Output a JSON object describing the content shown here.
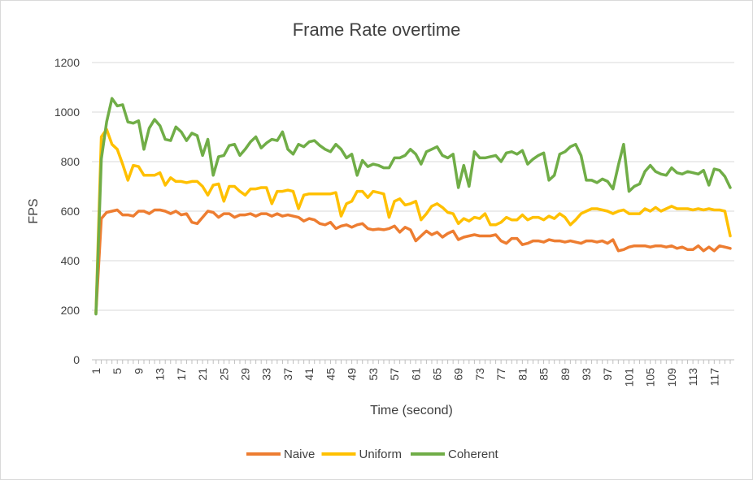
{
  "chart_data": {
    "type": "line",
    "title": "Frame Rate overtime",
    "xlabel": "Time (second)",
    "ylabel": "FPS",
    "ylim": [
      0,
      1200
    ],
    "yticks": [
      0,
      200,
      400,
      600,
      800,
      1000,
      1200
    ],
    "xlim": [
      1,
      120
    ],
    "xticks": [
      1,
      5,
      9,
      13,
      17,
      21,
      25,
      29,
      33,
      37,
      41,
      45,
      49,
      53,
      57,
      61,
      65,
      69,
      73,
      77,
      81,
      85,
      89,
      93,
      97,
      101,
      105,
      109,
      113,
      117
    ],
    "grid": "horizontal",
    "legend": "bottom",
    "series": [
      {
        "name": "Naive",
        "color": "#ED7D31",
        "x": [
          1,
          2,
          3,
          4,
          5,
          6,
          7,
          8,
          9,
          10,
          11,
          12,
          13,
          14,
          15,
          16,
          17,
          18,
          19,
          20,
          21,
          22,
          23,
          24,
          25,
          26,
          27,
          28,
          29,
          30,
          31,
          32,
          33,
          34,
          35,
          36,
          37,
          38,
          39,
          40,
          41,
          42,
          43,
          44,
          45,
          46,
          47,
          48,
          49,
          50,
          51,
          52,
          53,
          54,
          55,
          56,
          57,
          58,
          59,
          60,
          61,
          62,
          63,
          64,
          65,
          66,
          67,
          68,
          69,
          70,
          71,
          72,
          73,
          74,
          75,
          76,
          77,
          78,
          79,
          80,
          81,
          82,
          83,
          84,
          85,
          86,
          87,
          88,
          89,
          90,
          91,
          92,
          93,
          94,
          95,
          96,
          97,
          98,
          99,
          100,
          101,
          102,
          103,
          104,
          105,
          106,
          107,
          108,
          109,
          110,
          111,
          112,
          113,
          114,
          115,
          116,
          117,
          118,
          119,
          120
        ],
        "values": [
          190,
          570,
          595,
          600,
          605,
          585,
          585,
          580,
          600,
          600,
          590,
          605,
          605,
          600,
          590,
          600,
          585,
          590,
          555,
          550,
          575,
          600,
          595,
          575,
          590,
          590,
          575,
          585,
          585,
          590,
          580,
          590,
          590,
          580,
          590,
          580,
          585,
          580,
          575,
          560,
          570,
          565,
          550,
          545,
          555,
          530,
          540,
          545,
          535,
          545,
          550,
          530,
          525,
          528,
          525,
          530,
          540,
          515,
          535,
          525,
          480,
          500,
          520,
          505,
          515,
          495,
          510,
          520,
          485,
          495,
          500,
          505,
          500,
          500,
          500,
          505,
          480,
          470,
          490,
          490,
          465,
          470,
          480,
          480,
          475,
          485,
          480,
          480,
          475,
          480,
          475,
          470,
          480,
          480,
          475,
          480,
          470,
          485,
          440,
          445,
          455,
          460,
          460,
          460,
          455,
          460,
          460,
          455,
          460,
          450,
          455,
          445,
          445,
          460,
          440,
          455,
          440,
          460,
          455,
          450
        ]
      },
      {
        "name": "Uniform",
        "color": "#FFC000",
        "x": [
          1,
          2,
          3,
          4,
          5,
          6,
          7,
          8,
          9,
          10,
          11,
          12,
          13,
          14,
          15,
          16,
          17,
          18,
          19,
          20,
          21,
          22,
          23,
          24,
          25,
          26,
          27,
          28,
          29,
          30,
          31,
          32,
          33,
          34,
          35,
          36,
          37,
          38,
          39,
          40,
          41,
          42,
          43,
          44,
          45,
          46,
          47,
          48,
          49,
          50,
          51,
          52,
          53,
          54,
          55,
          56,
          57,
          58,
          59,
          60,
          61,
          62,
          63,
          64,
          65,
          66,
          67,
          68,
          69,
          70,
          71,
          72,
          73,
          74,
          75,
          76,
          77,
          78,
          79,
          80,
          81,
          82,
          83,
          84,
          85,
          86,
          87,
          88,
          89,
          90,
          91,
          92,
          93,
          94,
          95,
          96,
          97,
          98,
          99,
          100,
          101,
          102,
          103,
          104,
          105,
          106,
          107,
          108,
          109,
          110,
          111,
          112,
          113,
          114,
          115,
          116,
          117,
          118,
          119,
          120
        ],
        "values": [
          190,
          900,
          930,
          870,
          850,
          790,
          725,
          785,
          780,
          745,
          745,
          745,
          755,
          705,
          735,
          720,
          720,
          715,
          720,
          720,
          700,
          665,
          705,
          710,
          640,
          700,
          700,
          680,
          665,
          690,
          690,
          695,
          695,
          630,
          680,
          680,
          685,
          680,
          610,
          665,
          670,
          670,
          670,
          670,
          670,
          675,
          580,
          630,
          640,
          680,
          680,
          655,
          680,
          675,
          670,
          575,
          640,
          650,
          625,
          630,
          640,
          565,
          590,
          620,
          630,
          615,
          595,
          590,
          550,
          570,
          560,
          575,
          570,
          590,
          545,
          545,
          555,
          575,
          565,
          565,
          585,
          565,
          575,
          575,
          565,
          580,
          570,
          590,
          575,
          545,
          565,
          590,
          600,
          610,
          610,
          605,
          600,
          590,
          600,
          605,
          590,
          590,
          590,
          610,
          600,
          615,
          600,
          610,
          620,
          610,
          610,
          610,
          605,
          610,
          605,
          610,
          605,
          605,
          600,
          500
        ]
      },
      {
        "name": "Coherent",
        "color": "#70AD47",
        "x": [
          1,
          2,
          3,
          4,
          5,
          6,
          7,
          8,
          9,
          10,
          11,
          12,
          13,
          14,
          15,
          16,
          17,
          18,
          19,
          20,
          21,
          22,
          23,
          24,
          25,
          26,
          27,
          28,
          29,
          30,
          31,
          32,
          33,
          34,
          35,
          36,
          37,
          38,
          39,
          40,
          41,
          42,
          43,
          44,
          45,
          46,
          47,
          48,
          49,
          50,
          51,
          52,
          53,
          54,
          55,
          56,
          57,
          58,
          59,
          60,
          61,
          62,
          63,
          64,
          65,
          66,
          67,
          68,
          69,
          70,
          71,
          72,
          73,
          74,
          75,
          76,
          77,
          78,
          79,
          80,
          81,
          82,
          83,
          84,
          85,
          86,
          87,
          88,
          89,
          90,
          91,
          92,
          93,
          94,
          95,
          96,
          97,
          98,
          99,
          100,
          101,
          102,
          103,
          104,
          105,
          106,
          107,
          108,
          109,
          110,
          111,
          112,
          113,
          114,
          115,
          116,
          117,
          118,
          119,
          120
        ],
        "values": [
          185,
          810,
          960,
          1055,
          1025,
          1030,
          960,
          955,
          965,
          850,
          935,
          970,
          945,
          890,
          885,
          940,
          920,
          885,
          915,
          905,
          825,
          890,
          745,
          820,
          825,
          865,
          870,
          825,
          850,
          880,
          900,
          855,
          875,
          890,
          885,
          920,
          850,
          830,
          870,
          860,
          880,
          885,
          865,
          850,
          840,
          870,
          850,
          815,
          830,
          745,
          805,
          780,
          790,
          785,
          775,
          775,
          815,
          815,
          825,
          850,
          830,
          790,
          840,
          850,
          860,
          825,
          815,
          830,
          695,
          785,
          700,
          840,
          815,
          815,
          820,
          825,
          800,
          835,
          840,
          830,
          845,
          790,
          810,
          825,
          835,
          725,
          745,
          830,
          840,
          860,
          870,
          825,
          725,
          725,
          715,
          730,
          720,
          690,
          785,
          870,
          680,
          700,
          710,
          760,
          785,
          760,
          750,
          745,
          775,
          755,
          750,
          760,
          755,
          750,
          765,
          705,
          770,
          765,
          740,
          695
        ]
      }
    ]
  }
}
